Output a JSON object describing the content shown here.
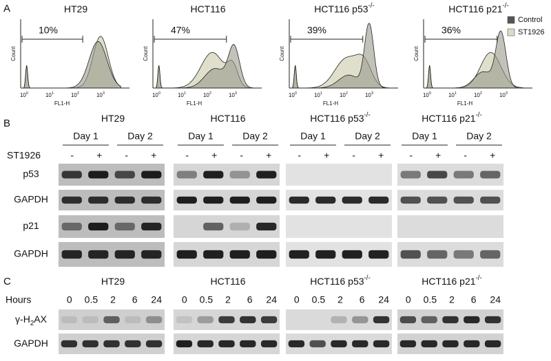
{
  "cell_lines": [
    {
      "name": "HT29"
    },
    {
      "name": "HCT116"
    },
    {
      "name": "HCT116 p53",
      "sup": "-/-"
    },
    {
      "name": "HCT116 p21",
      "sup": "-/-"
    }
  ],
  "panel_a": {
    "letter": "A",
    "y_label": "Count",
    "x_label": "FL1-H",
    "x_tick_base": "10",
    "x_tick_exps": [
      "0",
      "1",
      "2",
      "3"
    ],
    "legend": [
      "Control",
      "ST1926"
    ],
    "percents": [
      "10%",
      "47%",
      "39%",
      "36%"
    ]
  },
  "panel_b": {
    "letter": "B",
    "treatment": "ST1926",
    "days": [
      "Day 1",
      "Day 2"
    ],
    "signs": [
      "-",
      "+",
      "-",
      "+"
    ],
    "rows": [
      "p53",
      "GAPDH",
      "p21",
      "GAPDH"
    ]
  },
  "panel_c": {
    "letter": "C",
    "time_label": "Hours",
    "hours": [
      "0",
      "0.5",
      "2",
      "6",
      "24"
    ],
    "rows": [
      {
        "pre": "γ-H",
        "sub": "2",
        "post": "AX"
      },
      {
        "pre": "GAPDH"
      }
    ]
  }
}
